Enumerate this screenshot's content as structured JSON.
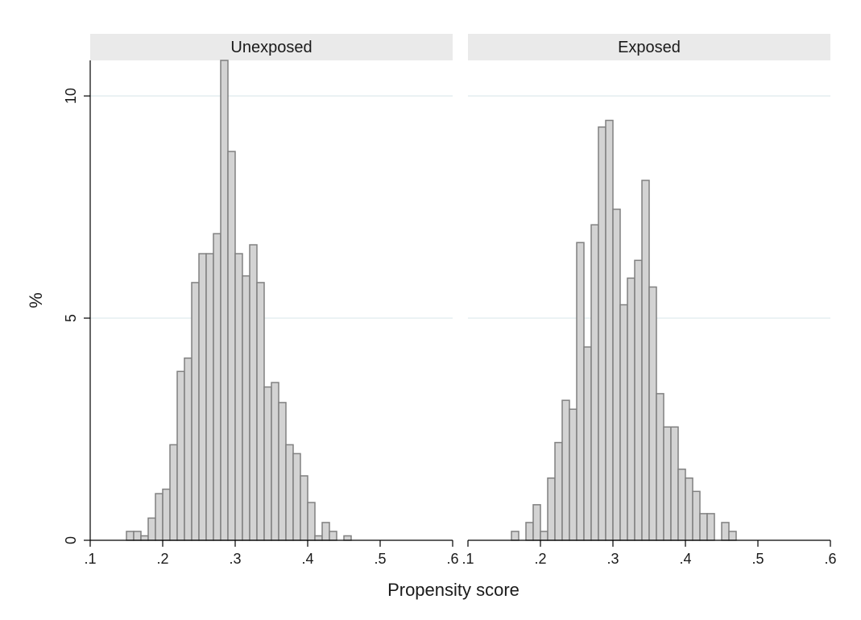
{
  "chart_data": [
    {
      "type": "bar",
      "panel": "Unexposed",
      "bin_width": 0.01,
      "x": [
        0.155,
        0.165,
        0.175,
        0.185,
        0.195,
        0.205,
        0.215,
        0.225,
        0.235,
        0.245,
        0.255,
        0.265,
        0.275,
        0.285,
        0.295,
        0.305,
        0.315,
        0.325,
        0.335,
        0.345,
        0.355,
        0.365,
        0.375,
        0.385,
        0.395,
        0.405,
        0.415,
        0.425,
        0.435,
        0.445,
        0.455,
        0.465,
        0.475,
        0.485,
        0.495,
        0.505
      ],
      "values": [
        0.2,
        0.2,
        0.1,
        0.5,
        1.05,
        1.15,
        2.15,
        3.8,
        4.1,
        5.8,
        6.45,
        6.45,
        6.9,
        10.8,
        8.75,
        6.45,
        5.95,
        6.65,
        5.8,
        3.45,
        3.55,
        3.1,
        2.15,
        1.95,
        1.45,
        0.85,
        0.1,
        0.4,
        0.2,
        0,
        0.1,
        0,
        0,
        0,
        0,
        0
      ],
      "xlim": [
        0.1,
        0.6
      ],
      "ylim": [
        0,
        10.8
      ]
    },
    {
      "type": "bar",
      "panel": "Exposed",
      "bin_width": 0.01,
      "x": [
        0.165,
        0.175,
        0.185,
        0.195,
        0.205,
        0.215,
        0.225,
        0.235,
        0.245,
        0.255,
        0.265,
        0.275,
        0.285,
        0.295,
        0.305,
        0.315,
        0.325,
        0.335,
        0.345,
        0.355,
        0.365,
        0.375,
        0.385,
        0.395,
        0.405,
        0.415,
        0.425,
        0.435,
        0.445,
        0.455,
        0.465,
        0.475,
        0.485,
        0.495
      ],
      "values": [
        0.2,
        0,
        0.4,
        0.8,
        0.2,
        1.4,
        2.2,
        3.15,
        2.95,
        6.7,
        4.35,
        7.1,
        9.3,
        9.45,
        7.45,
        5.3,
        5.9,
        6.3,
        8.1,
        5.7,
        3.3,
        2.55,
        2.55,
        1.6,
        1.4,
        1.1,
        0.6,
        0.6,
        0,
        0.4,
        0.2,
        0,
        0,
        0
      ],
      "xlim": [
        0.1,
        0.6
      ],
      "ylim": [
        0,
        10.8
      ]
    }
  ],
  "panels": [
    {
      "title": "Unexposed"
    },
    {
      "title": "Exposed"
    }
  ],
  "x_axis": {
    "title": "Propensity score",
    "tick_values": [
      0.1,
      0.2,
      0.3,
      0.4,
      0.5,
      0.6
    ],
    "tick_labels_left": [
      ".1",
      ".2",
      ".3",
      ".4",
      ".5",
      ".6"
    ],
    "tick_labels_right": [
      ".1",
      ".2",
      ".3",
      ".4",
      ".5",
      ".6"
    ]
  },
  "y_axis": {
    "title": "%",
    "tick_values": [
      0,
      5,
      10
    ],
    "tick_labels": [
      "0",
      "5",
      "10"
    ]
  },
  "colors": {
    "bar_fill": "#d3d3d3",
    "bar_stroke": "#808080",
    "strip_fill": "#eaeaea",
    "gridline": "#dde9ec",
    "axis": "#000000"
  }
}
